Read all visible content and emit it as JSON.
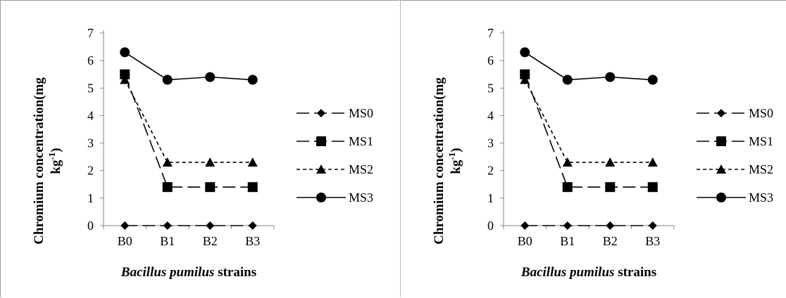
{
  "chart_data": [
    {
      "type": "line",
      "categories": [
        "B0",
        "B1",
        "B2",
        "B3"
      ],
      "series": [
        {
          "name": "MS0",
          "values": [
            0,
            0,
            0,
            0
          ],
          "marker": "diamond",
          "dash": "long-dash"
        },
        {
          "name": "MS1",
          "values": [
            5.5,
            1.4,
            1.4,
            1.4
          ],
          "marker": "square",
          "dash": "long-dash"
        },
        {
          "name": "MS2",
          "values": [
            5.3,
            2.3,
            2.3,
            2.3
          ],
          "marker": "triangle",
          "dash": "short-dash"
        },
        {
          "name": "MS3",
          "values": [
            6.3,
            5.3,
            5.4,
            5.3
          ],
          "marker": "circle",
          "dash": "solid"
        }
      ],
      "yticks": [
        "0",
        "1",
        "2",
        "3",
        "4",
        "5",
        "6",
        "7"
      ],
      "ylim": [
        0,
        7
      ],
      "ylabel_line1": "Chromium concentration(mg",
      "ylabel_line2_base": "kg",
      "ylabel_line2_sup": "-1",
      "ylabel_line2_tail": ")",
      "xlabel_italic": "Bacillus pumilus",
      "xlabel_rest": " strains",
      "grid": false,
      "legend_position": "right"
    },
    {
      "type": "line",
      "categories": [
        "B0",
        "B1",
        "B2",
        "B3"
      ],
      "series": [
        {
          "name": "MS0",
          "values": [
            0,
            0,
            0,
            0
          ],
          "marker": "diamond",
          "dash": "long-dash"
        },
        {
          "name": "MS1",
          "values": [
            5.5,
            1.4,
            1.4,
            1.4
          ],
          "marker": "square",
          "dash": "long-dash"
        },
        {
          "name": "MS2",
          "values": [
            5.3,
            2.3,
            2.3,
            2.3
          ],
          "marker": "triangle",
          "dash": "short-dash"
        },
        {
          "name": "MS3",
          "values": [
            6.3,
            5.3,
            5.4,
            5.3
          ],
          "marker": "circle",
          "dash": "solid"
        }
      ],
      "yticks": [
        "0",
        "1",
        "2",
        "3",
        "4",
        "5",
        "6",
        "7"
      ],
      "ylim": [
        0,
        7
      ],
      "ylabel_line1": "Chromium concentration(mg",
      "ylabel_line2_base": "kg",
      "ylabel_line2_sup": "-1",
      "ylabel_line2_tail": ")",
      "xlabel_italic": "Bacillus pumilus",
      "xlabel_rest": " strains",
      "grid": false,
      "legend_position": "right"
    }
  ]
}
